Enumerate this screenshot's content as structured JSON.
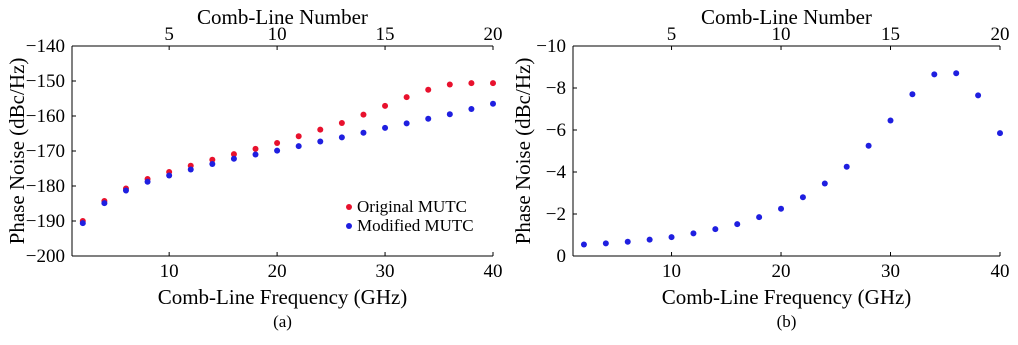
{
  "chart_data": [
    {
      "type": "scatter",
      "panel_label": "(a)",
      "xlabel": "Comb-Line Frequency (GHz)",
      "ylabel": "Phase Noise (dBc/Hz)",
      "top_xlabel": "Comb-Line Number",
      "xlim": [
        1,
        40
      ],
      "ylim": [
        -200,
        -140
      ],
      "xticks": [
        10,
        20,
        30,
        40
      ],
      "yticks": [
        -200,
        -190,
        -180,
        -170,
        -160,
        -150,
        -140
      ],
      "top_xticks": [
        5,
        10,
        15,
        20
      ],
      "legend_position": "bottom-right",
      "grid": false,
      "x": [
        2,
        4,
        6,
        8,
        10,
        12,
        14,
        16,
        18,
        20,
        22,
        24,
        26,
        28,
        30,
        32,
        34,
        36,
        38,
        40
      ],
      "series": [
        {
          "name": "Original MUTC",
          "color": "#e8112d",
          "values": [
            -190.0,
            -184.3,
            -180.7,
            -178.0,
            -176.0,
            -174.2,
            -172.5,
            -170.9,
            -169.4,
            -167.7,
            -165.8,
            -163.9,
            -162.0,
            -159.6,
            -157.1,
            -154.6,
            -152.5,
            -151.0,
            -150.6,
            -150.6
          ]
        },
        {
          "name": "Modified MUTC",
          "color": "#1f1fe0",
          "values": [
            -190.6,
            -184.9,
            -181.3,
            -178.8,
            -177.0,
            -175.3,
            -173.7,
            -172.2,
            -171.0,
            -169.9,
            -168.6,
            -167.3,
            -166.1,
            -164.8,
            -163.4,
            -162.1,
            -160.8,
            -159.5,
            -158.0,
            -156.5
          ]
        }
      ]
    },
    {
      "type": "scatter",
      "panel_label": "(b)",
      "xlabel": "Comb-Line Frequency (GHz)",
      "ylabel": "Phase Noise (dBc/Hz)",
      "top_xlabel": "Comb-Line Number",
      "xlim": [
        1,
        40
      ],
      "ylim": [
        0,
        -10
      ],
      "xticks": [
        10,
        20,
        30,
        40
      ],
      "yticks": [
        0,
        -2,
        -4,
        -6,
        -8,
        -10
      ],
      "top_xticks": [
        5,
        10,
        15,
        20
      ],
      "grid": false,
      "x": [
        2,
        4,
        6,
        8,
        10,
        12,
        14,
        16,
        18,
        20,
        22,
        24,
        26,
        28,
        30,
        32,
        34,
        36,
        38,
        40
      ],
      "series": [
        {
          "color": "#1f1fe0",
          "values": [
            -0.55,
            -0.6,
            -0.68,
            -0.78,
            -0.9,
            -1.08,
            -1.28,
            -1.52,
            -1.85,
            -2.25,
            -2.8,
            -3.45,
            -4.25,
            -5.25,
            -6.45,
            -7.7,
            -8.65,
            -8.7,
            -7.65,
            -5.85
          ]
        }
      ]
    }
  ]
}
